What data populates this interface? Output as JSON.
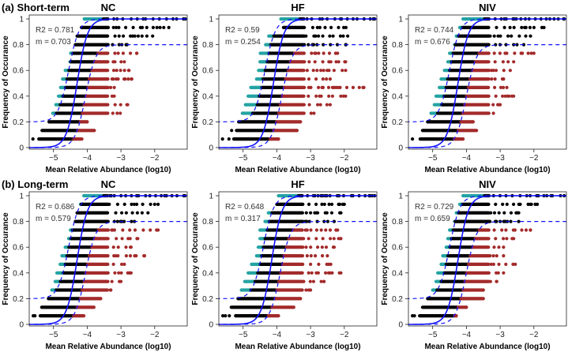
{
  "figure": {
    "row_labels": [
      "(a) Short-term",
      "(b) Long-term"
    ],
    "colors": {
      "above": "#25a3a3",
      "neutral": "#000000",
      "below": "#a32a2a",
      "fit": "#1010ff"
    }
  },
  "chart_data": [
    {
      "type": "scatter",
      "row": 0,
      "title": "NC",
      "r2_text": "R2 = 0.781",
      "m_text": "m = 0.703",
      "center": -4.3,
      "xlabel": "Mean Relative Abundance (log10)",
      "ylabel": "Frequency of Occurance",
      "xticks": [
        "−5",
        "−4",
        "−3",
        "−2"
      ],
      "xtick_values": [
        -5,
        -4,
        -3,
        -2
      ],
      "yticks": [
        "0",
        "0.2",
        "0.4",
        "0.6",
        "0.8",
        "1"
      ],
      "ytick_values": [
        0,
        0.2,
        0.4,
        0.6,
        0.8,
        1
      ],
      "xlim": [
        -5.72,
        -1.0
      ],
      "ylim": [
        0,
        1
      ],
      "levels": [
        [
          -4.09,
          -1.09
        ],
        [
          -4.17,
          -1.58
        ],
        [
          -4.3,
          -2.06
        ],
        [
          -4.35,
          -2.82
        ],
        [
          -4.49,
          -2.53
        ],
        [
          -4.51,
          -2.9
        ],
        [
          -4.65,
          -2.76
        ],
        [
          -4.73,
          -2.68
        ],
        [
          -4.79,
          -3.2
        ],
        [
          -4.85,
          -3.2
        ],
        [
          -4.93,
          -2.8
        ],
        [
          -5.02,
          -3.02
        ],
        [
          -5.13,
          -4.0
        ],
        [
          -5.34,
          -3.79
        ],
        [
          -5.61,
          -4.16
        ]
      ]
    },
    {
      "type": "scatter",
      "row": 0,
      "title": "HF",
      "r2_text": "R2 = 0.59",
      "m_text": "m = 0.254",
      "center": -4.1,
      "xlabel": "Mean Relative Abundance (log10)",
      "ylabel": "Frequency of Occurance",
      "xticks": [
        "−5",
        "−4",
        "−3",
        "−2"
      ],
      "xtick_values": [
        -5,
        -4,
        -3,
        -2
      ],
      "yticks": [
        "0",
        "0.2",
        "0.4",
        "0.6",
        "0.8",
        "1"
      ],
      "ytick_values": [
        0,
        0.2,
        0.4,
        0.6,
        0.8,
        1
      ],
      "xlim": [
        -5.72,
        -1.0
      ],
      "ylim": [
        0,
        1
      ],
      "levels": [
        [
          -3.88,
          -1.1
        ],
        [
          -3.8,
          -1.95
        ],
        [
          -4.24,
          -1.9
        ],
        [
          -4.33,
          -1.95
        ],
        [
          -4.49,
          -2.2
        ],
        [
          -4.5,
          -1.96
        ],
        [
          -4.54,
          -1.96
        ],
        [
          -4.6,
          -2.42
        ],
        [
          -4.77,
          -1.42
        ],
        [
          -4.85,
          -1.96
        ],
        [
          -4.93,
          -2.42
        ],
        [
          -5.02,
          -2.9
        ],
        [
          -5.13,
          -3.3
        ],
        [
          -5.34,
          -3.4
        ],
        [
          -5.61,
          -3.95
        ]
      ]
    },
    {
      "type": "scatter",
      "row": 0,
      "title": "NIV",
      "r2_text": "R2 = 0.744",
      "m_text": "m = 0.676",
      "center": -4.25,
      "xlabel": "Mean Relative Abundance (log10)",
      "ylabel": "Frequency of Occurance",
      "xticks": [
        "−5",
        "−4",
        "−3",
        "−2"
      ],
      "xtick_values": [
        -5,
        -4,
        -3,
        -2
      ],
      "yticks": [
        "0",
        "0.2",
        "0.4",
        "0.6",
        "0.8",
        "1"
      ],
      "ytick_values": [
        0,
        0.2,
        0.4,
        0.6,
        0.8,
        1
      ],
      "xlim": [
        -5.72,
        -1.0
      ],
      "ylim": [
        0,
        1
      ],
      "levels": [
        [
          -4.1,
          -1.1
        ],
        [
          -4.2,
          -1.7
        ],
        [
          -4.3,
          -2.1
        ],
        [
          -4.35,
          -2.3
        ],
        [
          -4.5,
          -2.0
        ],
        [
          -4.55,
          -2.6
        ],
        [
          -4.65,
          -2.7
        ],
        [
          -4.75,
          -2.9
        ],
        [
          -4.8,
          -2.8
        ],
        [
          -4.9,
          -2.6
        ],
        [
          -4.95,
          -3.0
        ],
        [
          -5.05,
          -3.2
        ],
        [
          -5.15,
          -3.8
        ],
        [
          -5.3,
          -3.7
        ],
        [
          -5.6,
          -4.1
        ]
      ]
    },
    {
      "type": "scatter",
      "row": 1,
      "title": "NC",
      "r2_text": "R2 = 0.686",
      "m_text": "m = 0.579",
      "center": -4.3,
      "xlabel": "Mean Relative Abundance (log10)",
      "ylabel": "Frequency of Occurance",
      "xticks": [
        "−5",
        "−4",
        "−3",
        "−2"
      ],
      "xtick_values": [
        -5,
        -4,
        -3,
        -2
      ],
      "yticks": [
        "0",
        "0.2",
        "0.4",
        "0.6",
        "0.8",
        "1"
      ],
      "ytick_values": [
        0,
        0.2,
        0.4,
        0.6,
        0.8,
        1
      ],
      "xlim": [
        -5.72,
        -1.0
      ],
      "ylim": [
        0,
        1
      ],
      "levels": [
        [
          -4.1,
          -1.1
        ],
        [
          -4.2,
          -1.9
        ],
        [
          -4.3,
          -2.2
        ],
        [
          -4.35,
          -2.6
        ],
        [
          -4.5,
          -1.9
        ],
        [
          -4.55,
          -2.5
        ],
        [
          -4.65,
          -2.7
        ],
        [
          -4.75,
          -2.3
        ],
        [
          -4.8,
          -2.9
        ],
        [
          -4.9,
          -2.7
        ],
        [
          -4.95,
          -3.0
        ],
        [
          -5.05,
          -3.3
        ],
        [
          -5.15,
          -3.6
        ],
        [
          -5.35,
          -3.8
        ],
        [
          -5.6,
          -4.1
        ]
      ]
    },
    {
      "type": "scatter",
      "row": 1,
      "title": "HF",
      "r2_text": "R2 = 0.648",
      "m_text": "m = 0.317",
      "center": -4.15,
      "xlabel": "Mean Relative Abundance (log10)",
      "ylabel": "Frequency of Occurance",
      "xticks": [
        "−5",
        "−4",
        "−3",
        "−2"
      ],
      "xtick_values": [
        -5,
        -4,
        -3,
        -2
      ],
      "yticks": [
        "0",
        "0.2",
        "0.4",
        "0.6",
        "0.8",
        "1"
      ],
      "ytick_values": [
        0,
        0.2,
        0.4,
        0.6,
        0.8,
        1
      ],
      "xlim": [
        -5.72,
        -1.0
      ],
      "ylim": [
        0,
        1
      ],
      "levels": [
        [
          -3.95,
          -1.1
        ],
        [
          -4.0,
          -2.0
        ],
        [
          -4.25,
          -2.1
        ],
        [
          -4.35,
          -2.3
        ],
        [
          -4.5,
          -2.2
        ],
        [
          -4.5,
          -2.1
        ],
        [
          -4.55,
          -2.3
        ],
        [
          -4.6,
          -2.5
        ],
        [
          -4.75,
          -2.4
        ],
        [
          -4.85,
          -2.1
        ],
        [
          -4.95,
          -2.6
        ],
        [
          -5.05,
          -3.0
        ],
        [
          -5.15,
          -3.3
        ],
        [
          -5.35,
          -3.5
        ],
        [
          -5.6,
          -3.95
        ]
      ]
    },
    {
      "type": "scatter",
      "row": 1,
      "title": "NIV",
      "r2_text": "R2 = 0.729",
      "m_text": "m = 0.659",
      "center": -4.25,
      "xlabel": "Mean Relative Abundance (log10)",
      "ylabel": "Frequency of Occurance",
      "xticks": [
        "−5",
        "−4",
        "−3",
        "−2"
      ],
      "xtick_values": [
        -5,
        -4,
        -3,
        -2
      ],
      "yticks": [
        "0",
        "0.2",
        "0.4",
        "0.6",
        "0.8",
        "1"
      ],
      "ytick_values": [
        0,
        0.2,
        0.4,
        0.6,
        0.8,
        1
      ],
      "xlim": [
        -5.72,
        -1.0
      ],
      "ylim": [
        0,
        1
      ],
      "levels": [
        [
          -4.1,
          -1.1
        ],
        [
          -4.2,
          -1.9
        ],
        [
          -4.3,
          -2.45
        ],
        [
          -4.35,
          -2.45
        ],
        [
          -4.5,
          -2.1
        ],
        [
          -4.55,
          -2.6
        ],
        [
          -4.6,
          -2.9
        ],
        [
          -4.7,
          -2.9
        ],
        [
          -4.75,
          -2.55
        ],
        [
          -4.85,
          -2.9
        ],
        [
          -4.9,
          -3.1
        ],
        [
          -5.0,
          -3.5
        ],
        [
          -5.15,
          -3.5
        ],
        [
          -5.3,
          -4.0
        ],
        [
          -5.6,
          -4.3
        ]
      ]
    }
  ]
}
